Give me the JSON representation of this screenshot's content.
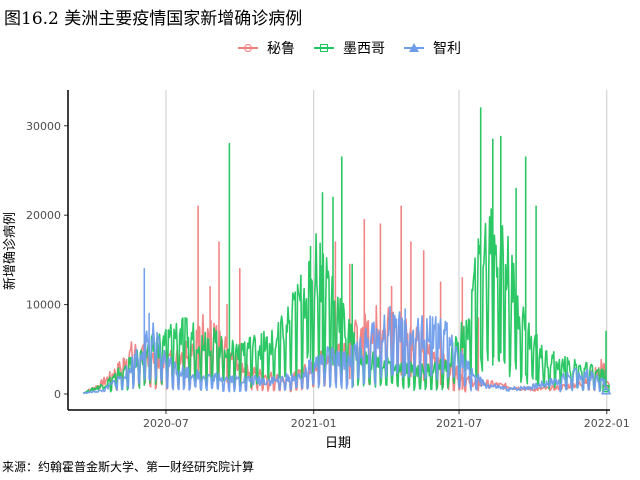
{
  "title": "图16.2 美洲主要疫情国家新增确诊病例",
  "source": "来源：约翰霍普金斯大学、第一财经研究院计算",
  "colors": {
    "peru": "#F08080",
    "mexico": "#22C55E",
    "chile": "#6F9CEB"
  },
  "chart_data": {
    "type": "line",
    "title": "图16.2 美洲主要疫情国家新增确诊病例",
    "xlabel": "日期",
    "ylabel": "新增确诊病例",
    "x_ticks": [
      "2020-07",
      "2021-01",
      "2021-07",
      "2022-01"
    ],
    "y_ticks": [
      "0",
      "10000",
      "20000",
      "30000"
    ],
    "xlim": [
      "2020-03-01",
      "2022-01-05"
    ],
    "ylim": [
      0,
      34000
    ],
    "grid": "vertical",
    "legend_position": "top",
    "series": [
      {
        "name": "秘鲁",
        "color": "#F08080",
        "marker": "circle",
        "x": [
          "2020-03-20",
          "2020-04-10",
          "2020-05-01",
          "2020-05-20",
          "2020-06-10",
          "2020-06-25",
          "2020-07-15",
          "2020-08-05",
          "2020-08-15",
          "2020-09-01",
          "2020-09-20",
          "2020-10-10",
          "2020-11-01",
          "2020-12-01",
          "2021-01-01",
          "2021-01-20",
          "2021-02-10",
          "2021-03-01",
          "2021-03-20",
          "2021-04-10",
          "2021-04-25",
          "2021-05-10",
          "2021-05-25",
          "2021-06-10",
          "2021-06-25",
          "2021-07-10",
          "2021-08-01",
          "2021-09-01",
          "2021-10-01",
          "2021-11-01",
          "2021-12-01",
          "2021-12-20",
          "2021-12-31"
        ],
        "y": [
          100,
          1000,
          2500,
          4500,
          4000,
          3500,
          4000,
          5500,
          7000,
          6000,
          4000,
          2500,
          2000,
          1500,
          3000,
          4500,
          5500,
          6500,
          7500,
          7500,
          7000,
          6000,
          4500,
          3500,
          2500,
          1500,
          1200,
          800,
          500,
          700,
          1200,
          2500,
          3500
        ],
        "spikes_x": [
          "2020-06-05",
          "2020-08-10",
          "2020-08-25",
          "2020-09-05",
          "2020-09-15",
          "2020-10-01",
          "2021-01-28",
          "2021-02-15",
          "2021-03-05",
          "2021-03-25",
          "2021-04-08",
          "2021-04-20",
          "2021-05-02",
          "2021-05-18",
          "2021-06-08",
          "2021-07-05",
          "2021-07-25"
        ],
        "spikes_y": [
          6500,
          21000,
          12000,
          17000,
          10000,
          14000,
          17000,
          14500,
          19500,
          19000,
          12000,
          21000,
          17000,
          16000,
          12500,
          13000,
          8500
        ]
      },
      {
        "name": "墨西哥",
        "color": "#22C55E",
        "marker": "square",
        "x": [
          "2020-03-20",
          "2020-04-15",
          "2020-05-15",
          "2020-06-15",
          "2020-07-15",
          "2020-08-15",
          "2020-09-15",
          "2020-10-15",
          "2020-11-15",
          "2020-12-15",
          "2021-01-05",
          "2021-01-20",
          "2021-02-10",
          "2021-03-01",
          "2021-03-20",
          "2021-04-15",
          "2021-05-15",
          "2021-06-15",
          "2021-07-10",
          "2021-07-25",
          "2021-08-10",
          "2021-08-25",
          "2021-09-10",
          "2021-09-25",
          "2021-10-15",
          "2021-11-15",
          "2021-12-15",
          "2021-12-31"
        ],
        "y": [
          100,
          1000,
          3000,
          5000,
          6500,
          6000,
          5000,
          5000,
          5500,
          10000,
          14000,
          12000,
          7000,
          4000,
          3500,
          3000,
          2500,
          3000,
          7000,
          13000,
          17000,
          15000,
          10000,
          6500,
          4000,
          3000,
          2500,
          2000
        ],
        "spikes_x": [
          "2020-09-18",
          "2020-12-28",
          "2021-01-12",
          "2021-01-25",
          "2021-02-05",
          "2021-02-18",
          "2021-07-28",
          "2021-08-12",
          "2021-08-22",
          "2021-09-10",
          "2021-09-22",
          "2021-10-05",
          "2021-12-31"
        ],
        "spikes_y": [
          28000,
          16500,
          22500,
          22000,
          26500,
          14500,
          32000,
          28500,
          28800,
          23000,
          26500,
          21000,
          7000
        ]
      },
      {
        "name": "智利",
        "color": "#6F9CEB",
        "marker": "triangle",
        "x": [
          "2020-03-20",
          "2020-04-15",
          "2020-05-15",
          "2020-06-01",
          "2020-06-15",
          "2020-07-01",
          "2020-07-20",
          "2020-08-15",
          "2020-09-15",
          "2020-10-15",
          "2020-11-15",
          "2020-12-15",
          "2021-01-05",
          "2021-01-20",
          "2021-02-10",
          "2021-03-01",
          "2021-03-20",
          "2021-04-05",
          "2021-04-20",
          "2021-05-10",
          "2021-06-01",
          "2021-06-20",
          "2021-07-10",
          "2021-08-01",
          "2021-09-01",
          "2021-10-01",
          "2021-11-01",
          "2021-11-20",
          "2021-12-10",
          "2021-12-31"
        ],
        "y": [
          100,
          400,
          2500,
          5000,
          6000,
          3500,
          2500,
          2000,
          1700,
          1500,
          1500,
          2000,
          3500,
          4000,
          3500,
          5000,
          6500,
          7500,
          7000,
          6500,
          6500,
          6000,
          3000,
          1000,
          500,
          800,
          1500,
          2200,
          2000,
          1200
        ],
        "spikes_x": [
          "2020-06-04",
          "2020-06-10",
          "2021-04-10",
          "2021-04-25"
        ],
        "spikes_y": [
          14000,
          9000,
          9000,
          9500
        ]
      }
    ]
  }
}
